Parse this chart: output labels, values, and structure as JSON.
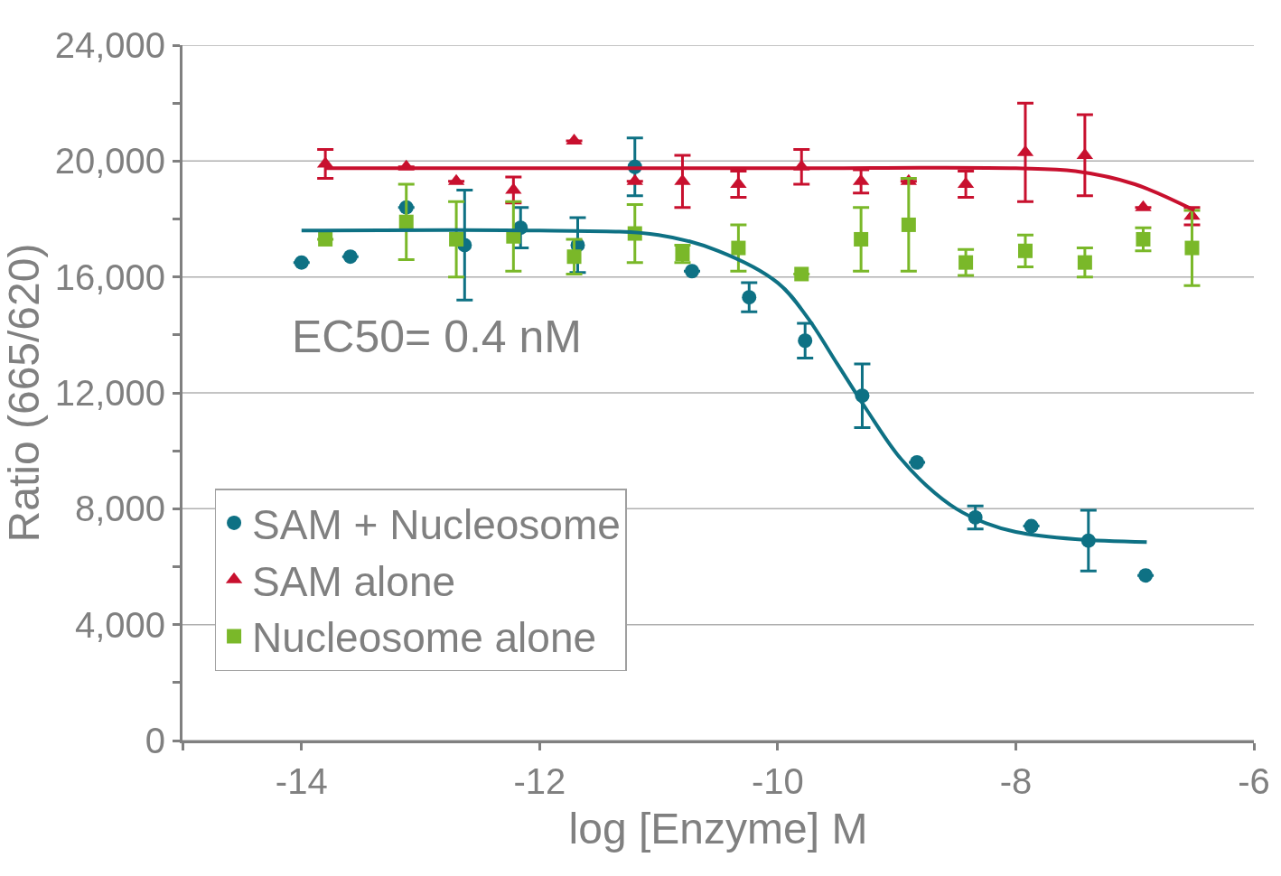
{
  "chart_data": {
    "type": "scatter",
    "xlabel": "log [Enzyme] M",
    "ylabel": "Ratio (665/620)",
    "xlim": [
      -15,
      -6
    ],
    "xticks": [
      {
        "value": -15,
        "label": null
      },
      -14,
      -12,
      -10,
      -8,
      -6
    ],
    "ylim": [
      0,
      24000
    ],
    "yticks": [
      0,
      {
        "value": 2000,
        "label": null
      },
      {
        "value": 4000,
        "label": "4,000"
      },
      {
        "value": 6000,
        "label": null
      },
      {
        "value": 8000,
        "label": "8,000"
      },
      {
        "value": 10000,
        "label": null
      },
      {
        "value": 12000,
        "label": "12,000"
      },
      {
        "value": 14000,
        "label": null
      },
      {
        "value": 16000,
        "label": "16,000"
      },
      {
        "value": 18000,
        "label": null
      },
      {
        "value": 20000,
        "label": "20,000"
      },
      {
        "value": 22000,
        "label": null
      },
      {
        "value": 24000,
        "label": "24,000"
      }
    ],
    "grid": "y",
    "legend": "bottom left",
    "annotations": [
      "EC50= 0.4 nM"
    ],
    "series": [
      {
        "name": "SAM + Nucleosome",
        "color": "#0e7184",
        "marker": "circle",
        "x": [
          -14,
          -13.59,
          -13.12,
          -12.63,
          -12.16,
          -11.68,
          -11.2,
          -10.72,
          -10.24,
          -9.77,
          -9.29,
          -8.83,
          -8.34,
          -7.87,
          -7.39,
          -6.91
        ],
        "values": [
          16500,
          16700,
          18400,
          17100,
          17700,
          17100,
          19800,
          16200,
          15300,
          13800,
          11900,
          9600,
          7700,
          7400,
          6900,
          5700
        ],
        "errors": [
          null,
          null,
          null,
          1900,
          700,
          950,
          1000,
          null,
          500,
          600,
          1100,
          null,
          400,
          null,
          1050,
          null
        ]
      },
      {
        "name": "SAM alone",
        "color": "#c8102e",
        "marker": "triangle",
        "x": [
          -13.8,
          -13.12,
          -12.7,
          -12.22,
          -11.71,
          -11.2,
          -10.8,
          -10.33,
          -9.8,
          -9.3,
          -8.9,
          -8.42,
          -7.92,
          -7.42,
          -6.93,
          -6.52
        ],
        "values": [
          19900,
          19800,
          19300,
          19000,
          20700,
          19300,
          19300,
          19200,
          19800,
          19300,
          19300,
          19200,
          20300,
          20200,
          18400,
          18100
        ],
        "errors": [
          500,
          null,
          null,
          450,
          null,
          null,
          900,
          450,
          600,
          400,
          null,
          450,
          1700,
          1400,
          null,
          300
        ]
      },
      {
        "name": "Nucleosome alone",
        "color": "#7ab829",
        "marker": "square",
        "x": [
          -13.8,
          -13.12,
          -12.7,
          -12.22,
          -11.71,
          -11.2,
          -10.8,
          -10.33,
          -9.8,
          -9.3,
          -8.9,
          -8.42,
          -7.92,
          -7.42,
          -6.93,
          -6.52
        ],
        "values": [
          17300,
          17900,
          17300,
          17400,
          16700,
          17500,
          16800,
          17000,
          16100,
          17300,
          17800,
          16500,
          16900,
          16500,
          17300,
          17000
        ],
        "errors": [
          null,
          1300,
          1300,
          1200,
          600,
          1000,
          300,
          800,
          null,
          1100,
          1600,
          450,
          550,
          500,
          400,
          1300
        ]
      },
      {
        "type": "line",
        "color": "#0e7184",
        "marker": "none",
        "x": [
          -14,
          -12,
          -11,
          -10.5,
          -10,
          -9.75,
          -9.5,
          -9.25,
          -9,
          -8.75,
          -8.5,
          -8.25,
          -8,
          -7.5,
          -6.9
        ],
        "values": [
          17600,
          17600,
          17450,
          16900,
          15800,
          14600,
          13000,
          11400,
          9900,
          8800,
          8000,
          7500,
          7200,
          6950,
          6850
        ]
      },
      {
        "type": "line",
        "color": "#c8102e",
        "marker": "none",
        "x": [
          -13.8,
          -10,
          -8,
          -7.5,
          -7,
          -6.5
        ],
        "values": [
          19750,
          19750,
          19750,
          19650,
          19200,
          18300
        ]
      }
    ]
  }
}
